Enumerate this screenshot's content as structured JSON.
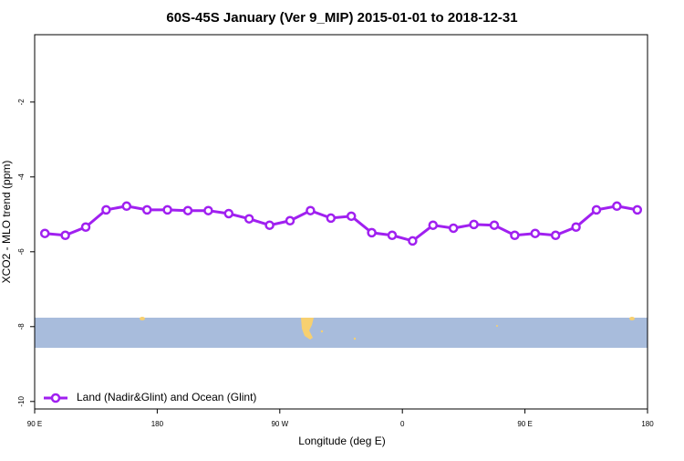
{
  "chart_data": {
    "type": "line",
    "title": "60S-45S January (Ver 9_MIP)   2015-01-01 to 2018-12-31",
    "x_label": "Longitude (deg E)",
    "y_label": "XCO2 - MLO trend (ppm)",
    "xlim": [
      90,
      540
    ],
    "xticks": [
      {
        "value": 90,
        "label": "90 E"
      },
      {
        "value": 180,
        "label": "180"
      },
      {
        "value": 270,
        "label": "90 W"
      },
      {
        "value": 360,
        "label": "0"
      },
      {
        "value": 450,
        "label": "90 E"
      },
      {
        "value": 540,
        "label": "180"
      }
    ],
    "ylim": [
      -10.2,
      -0.2
    ],
    "yticks": [
      -2,
      -4,
      -6,
      -8,
      -10
    ],
    "legend": "lower left",
    "x": [
      97.5,
      112.5,
      127.5,
      142.5,
      157.5,
      172.5,
      187.5,
      202.5,
      217.5,
      232.5,
      247.5,
      262.5,
      277.5,
      292.5,
      307.5,
      322.5,
      337.5,
      352.5,
      367.5,
      382.5,
      397.5,
      412.5,
      427.5,
      442.5,
      457.5,
      472.5,
      487.5,
      502.5,
      517.5,
      532.5
    ],
    "series": [
      {
        "name": "Land (Nadir&Glint) and Ocean (Glint)",
        "color": "#a020f0",
        "values": [
          -5.51,
          -5.56,
          -5.34,
          -4.88,
          -4.78,
          -4.88,
          -4.88,
          -4.9,
          -4.9,
          -4.98,
          -5.12,
          -5.29,
          -5.17,
          -4.9,
          -5.1,
          -5.05,
          -5.49,
          -5.56,
          -5.71,
          -5.29,
          -5.37,
          -5.27,
          -5.29,
          -5.56,
          -5.51,
          -5.56,
          -5.34,
          -4.88,
          -4.78,
          -4.88
        ]
      }
    ]
  }
}
